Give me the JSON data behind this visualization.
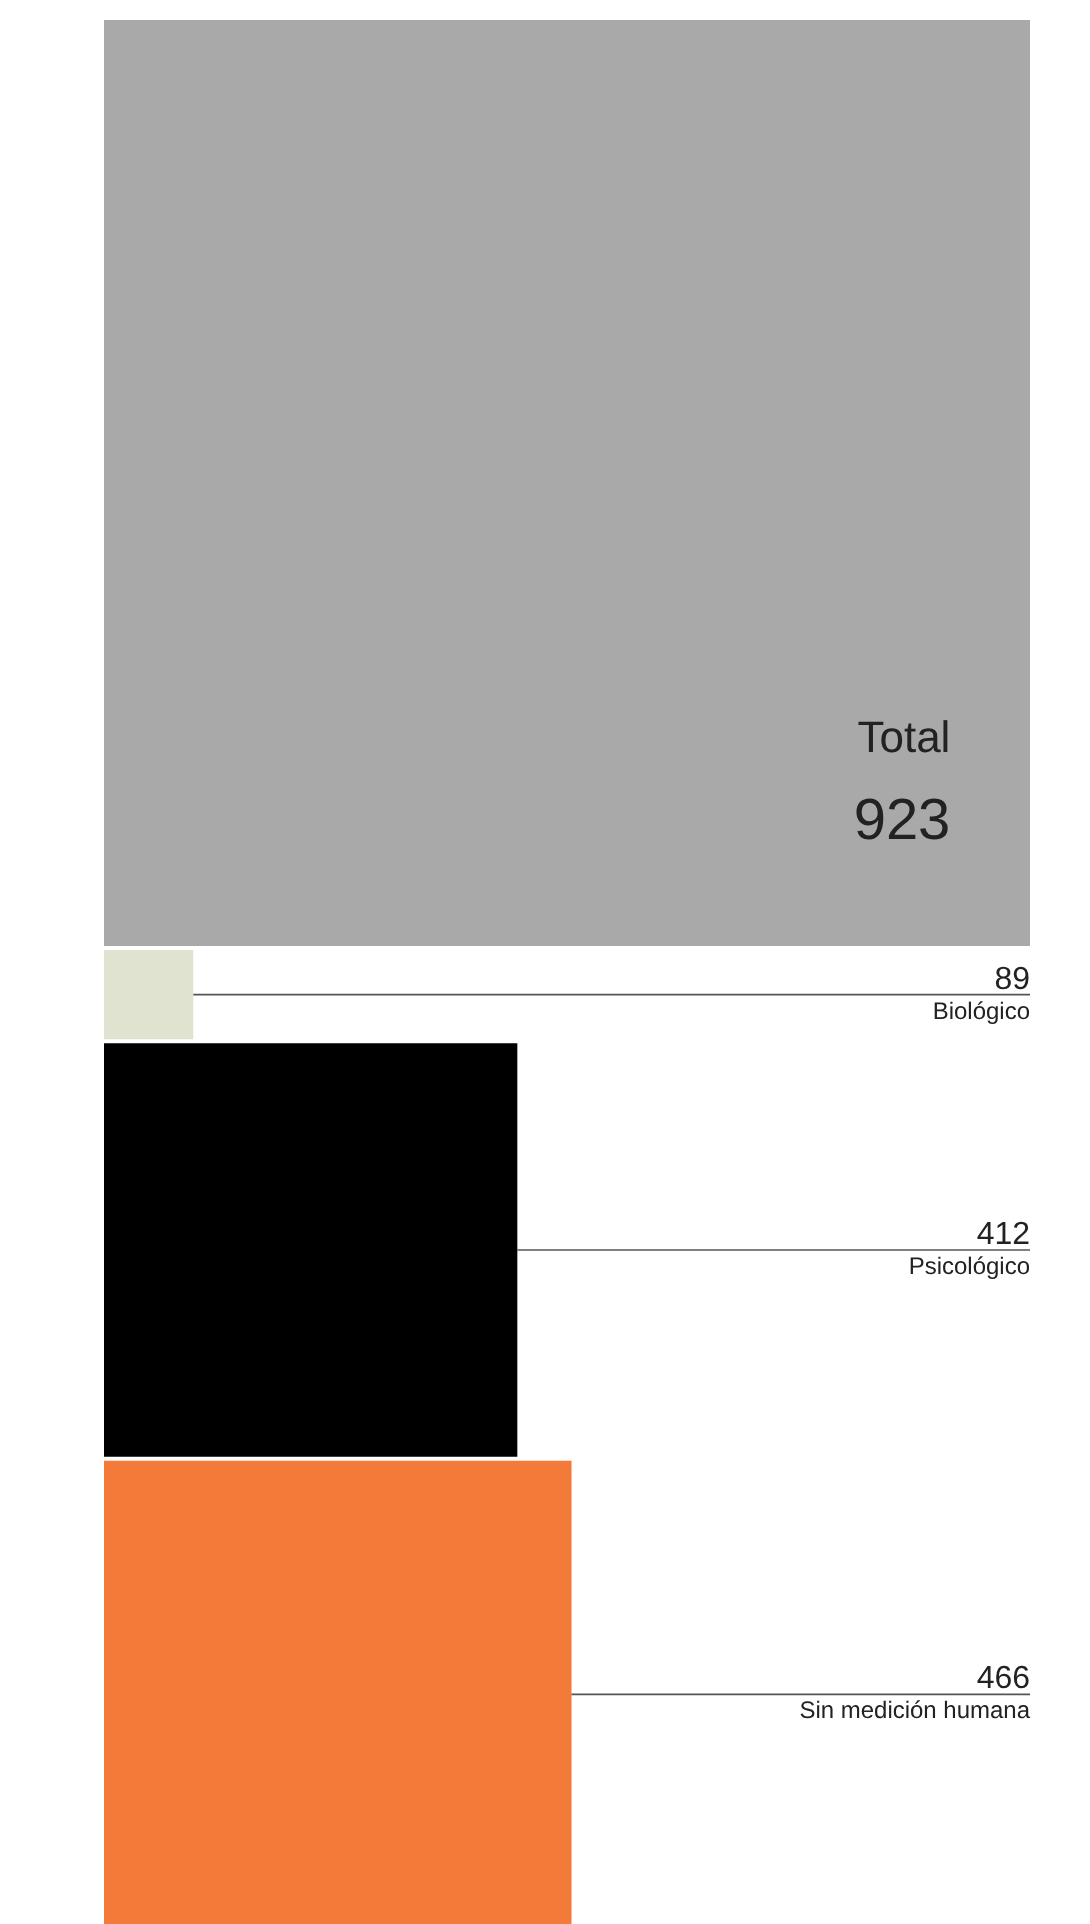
{
  "chart_data": {
    "type": "other",
    "categories": [
      "Total",
      "Biológico",
      "Psicológico",
      "Sin medición humana"
    ],
    "values": [
      923,
      89,
      412,
      466
    ],
    "data_labels": true,
    "colors": [
      "#a9a9a9",
      "#dfe3cf",
      "#000000",
      "#f47a3a"
    ]
  }
}
